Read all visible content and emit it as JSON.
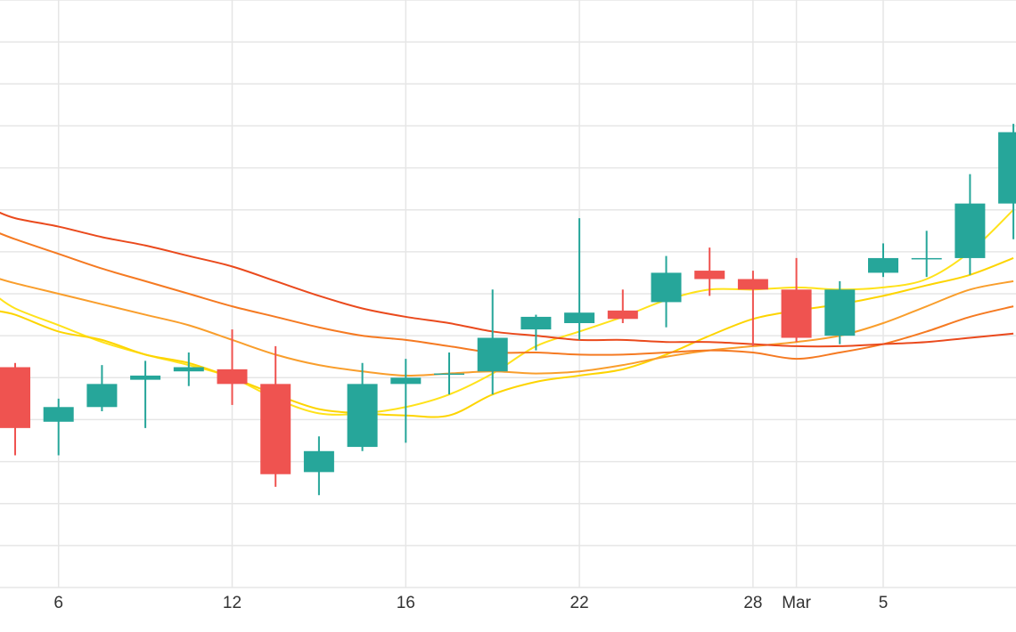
{
  "chart_data": {
    "type": "candlestick",
    "title": "",
    "xlabel": "",
    "ylabel": "",
    "x_ticks": [
      {
        "index": 1,
        "label": "6"
      },
      {
        "index": 5,
        "label": "12"
      },
      {
        "index": 9,
        "label": "16"
      },
      {
        "index": 13,
        "label": "22"
      },
      {
        "index": 17,
        "label": "28"
      },
      {
        "index": 18,
        "label": "Mar"
      },
      {
        "index": 20,
        "label": "5"
      }
    ],
    "ylim": [
      0,
      14
    ],
    "grid": true,
    "up_color": "#26a69a",
    "down_color": "#ef5350",
    "candles": [
      {
        "i": 0,
        "open": 5.25,
        "high": 5.35,
        "low": 3.15,
        "close": 3.8
      },
      {
        "i": 1,
        "open": 3.95,
        "high": 4.5,
        "low": 3.15,
        "close": 4.3
      },
      {
        "i": 2,
        "open": 4.3,
        "high": 5.3,
        "low": 4.2,
        "close": 4.85
      },
      {
        "i": 3,
        "open": 4.95,
        "high": 5.4,
        "low": 3.8,
        "close": 5.05
      },
      {
        "i": 4,
        "open": 5.15,
        "high": 5.6,
        "low": 4.8,
        "close": 5.25
      },
      {
        "i": 5,
        "open": 5.2,
        "high": 6.15,
        "low": 4.35,
        "close": 4.85
      },
      {
        "i": 6,
        "open": 4.85,
        "high": 5.75,
        "low": 2.4,
        "close": 2.7
      },
      {
        "i": 7,
        "open": 2.75,
        "high": 3.6,
        "low": 2.2,
        "close": 3.25
      },
      {
        "i": 8,
        "open": 3.35,
        "high": 5.35,
        "low": 3.25,
        "close": 4.85
      },
      {
        "i": 9,
        "open": 4.85,
        "high": 5.45,
        "low": 3.45,
        "close": 5.0
      },
      {
        "i": 10,
        "open": 5.1,
        "high": 5.6,
        "low": 4.6,
        "close": 5.1
      },
      {
        "i": 11,
        "open": 5.15,
        "high": 7.1,
        "low": 4.6,
        "close": 5.95
      },
      {
        "i": 12,
        "open": 6.15,
        "high": 6.5,
        "low": 5.65,
        "close": 6.45
      },
      {
        "i": 13,
        "open": 6.3,
        "high": 8.8,
        "low": 5.9,
        "close": 6.55
      },
      {
        "i": 14,
        "open": 6.6,
        "high": 7.1,
        "low": 6.3,
        "close": 6.4
      },
      {
        "i": 15,
        "open": 6.8,
        "high": 7.9,
        "low": 6.2,
        "close": 7.5
      },
      {
        "i": 16,
        "open": 7.55,
        "high": 8.1,
        "low": 6.95,
        "close": 7.35
      },
      {
        "i": 17,
        "open": 7.35,
        "high": 7.55,
        "low": 5.75,
        "close": 7.1
      },
      {
        "i": 18,
        "open": 7.1,
        "high": 7.85,
        "low": 5.85,
        "close": 5.95
      },
      {
        "i": 19,
        "open": 6.0,
        "high": 7.3,
        "low": 5.8,
        "close": 7.1
      },
      {
        "i": 20,
        "open": 7.5,
        "high": 8.2,
        "low": 7.4,
        "close": 7.85
      },
      {
        "i": 21,
        "open": 7.85,
        "high": 8.5,
        "low": 7.4,
        "close": 7.85
      },
      {
        "i": 22,
        "open": 7.85,
        "high": 9.85,
        "low": 7.45,
        "close": 9.15
      },
      {
        "i": 23,
        "open": 9.15,
        "high": 11.05,
        "low": 8.3,
        "close": 10.85
      }
    ],
    "moving_averages": [
      {
        "color": "#ffe21a",
        "values": [
          [
            -0.5,
            7.0
          ],
          [
            0,
            6.65
          ],
          [
            1,
            6.25
          ],
          [
            2,
            5.85
          ],
          [
            3,
            5.55
          ],
          [
            4,
            5.3
          ],
          [
            5,
            5.0
          ],
          [
            6,
            4.5
          ],
          [
            7,
            4.15
          ],
          [
            8,
            4.15
          ],
          [
            9,
            4.3
          ],
          [
            10,
            4.6
          ],
          [
            11,
            5.1
          ],
          [
            12,
            5.75
          ],
          [
            13,
            6.1
          ],
          [
            14,
            6.45
          ],
          [
            15,
            6.85
          ],
          [
            16,
            7.1
          ],
          [
            17,
            7.1
          ],
          [
            18,
            7.15
          ],
          [
            19,
            7.1
          ],
          [
            20,
            7.15
          ],
          [
            21,
            7.35
          ],
          [
            22,
            8.0
          ],
          [
            23,
            9.0
          ]
        ]
      },
      {
        "color": "#fdd400",
        "values": [
          [
            -0.5,
            6.6
          ],
          [
            0,
            6.5
          ],
          [
            1,
            6.1
          ],
          [
            2,
            5.9
          ],
          [
            3,
            5.55
          ],
          [
            4,
            5.35
          ],
          [
            5,
            5.0
          ],
          [
            6,
            4.6
          ],
          [
            7,
            4.25
          ],
          [
            8,
            4.15
          ],
          [
            9,
            4.1
          ],
          [
            10,
            4.1
          ],
          [
            11,
            4.6
          ],
          [
            12,
            4.9
          ],
          [
            13,
            5.05
          ],
          [
            14,
            5.2
          ],
          [
            15,
            5.55
          ],
          [
            16,
            6.0
          ],
          [
            17,
            6.4
          ],
          [
            18,
            6.6
          ],
          [
            19,
            6.75
          ],
          [
            20,
            6.95
          ],
          [
            21,
            7.2
          ],
          [
            22,
            7.45
          ],
          [
            23,
            7.85
          ]
        ]
      },
      {
        "color": "#f99e2c",
        "values": [
          [
            -0.5,
            7.4
          ],
          [
            0,
            7.25
          ],
          [
            1,
            7.0
          ],
          [
            2,
            6.75
          ],
          [
            3,
            6.5
          ],
          [
            4,
            6.25
          ],
          [
            5,
            5.9
          ],
          [
            6,
            5.55
          ],
          [
            7,
            5.3
          ],
          [
            8,
            5.15
          ],
          [
            9,
            5.05
          ],
          [
            10,
            5.1
          ],
          [
            11,
            5.15
          ],
          [
            12,
            5.1
          ],
          [
            13,
            5.15
          ],
          [
            14,
            5.3
          ],
          [
            15,
            5.5
          ],
          [
            16,
            5.65
          ],
          [
            17,
            5.75
          ],
          [
            18,
            5.85
          ],
          [
            19,
            6.0
          ],
          [
            20,
            6.3
          ],
          [
            21,
            6.7
          ],
          [
            22,
            7.1
          ],
          [
            23,
            7.3
          ]
        ]
      },
      {
        "color": "#f57a22",
        "values": [
          [
            -0.5,
            8.5
          ],
          [
            0,
            8.3
          ],
          [
            1,
            7.95
          ],
          [
            2,
            7.6
          ],
          [
            3,
            7.3
          ],
          [
            4,
            7.0
          ],
          [
            5,
            6.7
          ],
          [
            6,
            6.45
          ],
          [
            7,
            6.2
          ],
          [
            8,
            6.0
          ],
          [
            9,
            5.9
          ],
          [
            10,
            5.75
          ],
          [
            11,
            5.6
          ],
          [
            12,
            5.6
          ],
          [
            13,
            5.55
          ],
          [
            14,
            5.55
          ],
          [
            15,
            5.6
          ],
          [
            16,
            5.65
          ],
          [
            17,
            5.6
          ],
          [
            18,
            5.45
          ],
          [
            19,
            5.6
          ],
          [
            20,
            5.8
          ],
          [
            21,
            6.1
          ],
          [
            22,
            6.45
          ],
          [
            23,
            6.7
          ]
        ]
      },
      {
        "color": "#ea4a1d",
        "values": [
          [
            -0.5,
            9.0
          ],
          [
            0,
            8.8
          ],
          [
            1,
            8.6
          ],
          [
            2,
            8.35
          ],
          [
            3,
            8.15
          ],
          [
            4,
            7.9
          ],
          [
            5,
            7.65
          ],
          [
            6,
            7.3
          ],
          [
            7,
            6.95
          ],
          [
            8,
            6.65
          ],
          [
            9,
            6.45
          ],
          [
            10,
            6.3
          ],
          [
            11,
            6.1
          ],
          [
            12,
            6.0
          ],
          [
            13,
            5.9
          ],
          [
            14,
            5.9
          ],
          [
            15,
            5.85
          ],
          [
            16,
            5.85
          ],
          [
            17,
            5.8
          ],
          [
            18,
            5.75
          ],
          [
            19,
            5.75
          ],
          [
            20,
            5.8
          ],
          [
            21,
            5.85
          ],
          [
            22,
            5.95
          ],
          [
            23,
            6.05
          ]
        ]
      }
    ]
  }
}
